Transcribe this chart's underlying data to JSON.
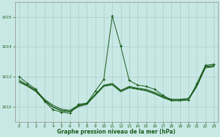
{
  "title": "Graphe pression niveau de la mer (hPa)",
  "bg_color": "#c8e8e5",
  "grid_color": "#a8ccc8",
  "line_color": "#1a5c1a",
  "ylim": [
    1011.5,
    1015.5
  ],
  "xlim": [
    -0.5,
    23.5
  ],
  "yticks": [
    1012,
    1013,
    1014,
    1015
  ],
  "xticks": [
    0,
    1,
    2,
    3,
    4,
    5,
    6,
    7,
    8,
    9,
    10,
    11,
    12,
    13,
    14,
    15,
    16,
    17,
    18,
    19,
    20,
    21,
    22,
    23
  ],
  "series_spike_x": [
    0,
    1,
    2,
    3,
    4,
    5,
    6,
    7,
    8,
    9,
    10,
    11,
    12,
    13,
    14,
    15,
    16,
    17,
    18,
    19,
    20,
    21,
    22,
    23
  ],
  "series_spike_y": [
    1013.0,
    1012.78,
    1012.58,
    1012.18,
    1011.9,
    1011.82,
    1011.78,
    1012.08,
    1012.12,
    1012.52,
    1012.92,
    1015.03,
    1014.02,
    1012.88,
    1012.72,
    1012.68,
    1012.58,
    1012.38,
    1012.22,
    1012.22,
    1012.22,
    1012.78,
    1013.38,
    1013.42
  ],
  "series_smooth1_x": [
    0,
    1,
    2,
    3,
    4,
    5,
    6,
    7,
    8,
    9,
    10,
    11,
    12,
    13,
    14,
    15,
    16,
    17,
    18,
    19,
    20,
    21,
    22,
    23
  ],
  "series_smooth1_y": [
    1012.9,
    1012.72,
    1012.55,
    1012.25,
    1012.05,
    1011.92,
    1011.88,
    1012.05,
    1012.12,
    1012.42,
    1012.72,
    1012.78,
    1012.55,
    1012.68,
    1012.62,
    1012.58,
    1012.48,
    1012.35,
    1012.25,
    1012.25,
    1012.28,
    1012.72,
    1013.35,
    1013.38
  ],
  "series_smooth2_x": [
    0,
    1,
    2,
    3,
    4,
    5,
    6,
    7,
    8,
    9,
    10,
    11,
    12,
    13,
    14,
    15,
    16,
    17,
    18,
    19,
    20,
    21,
    22,
    23
  ],
  "series_smooth2_y": [
    1012.85,
    1012.7,
    1012.52,
    1012.22,
    1012.0,
    1011.88,
    1011.85,
    1012.02,
    1012.1,
    1012.4,
    1012.7,
    1012.75,
    1012.52,
    1012.65,
    1012.6,
    1012.55,
    1012.45,
    1012.32,
    1012.22,
    1012.22,
    1012.25,
    1012.7,
    1013.32,
    1013.35
  ],
  "series_smooth3_x": [
    0,
    1,
    2,
    3,
    4,
    5,
    6,
    7,
    8,
    9,
    10,
    11,
    12,
    13,
    14,
    15,
    16,
    17,
    18,
    19,
    20,
    21,
    22,
    23
  ],
  "series_smooth3_y": [
    1012.82,
    1012.68,
    1012.5,
    1012.2,
    1011.98,
    1011.86,
    1011.83,
    1012.0,
    1012.08,
    1012.38,
    1012.68,
    1012.73,
    1012.5,
    1012.63,
    1012.58,
    1012.53,
    1012.43,
    1012.3,
    1012.2,
    1012.2,
    1012.23,
    1012.68,
    1013.3,
    1013.33
  ]
}
